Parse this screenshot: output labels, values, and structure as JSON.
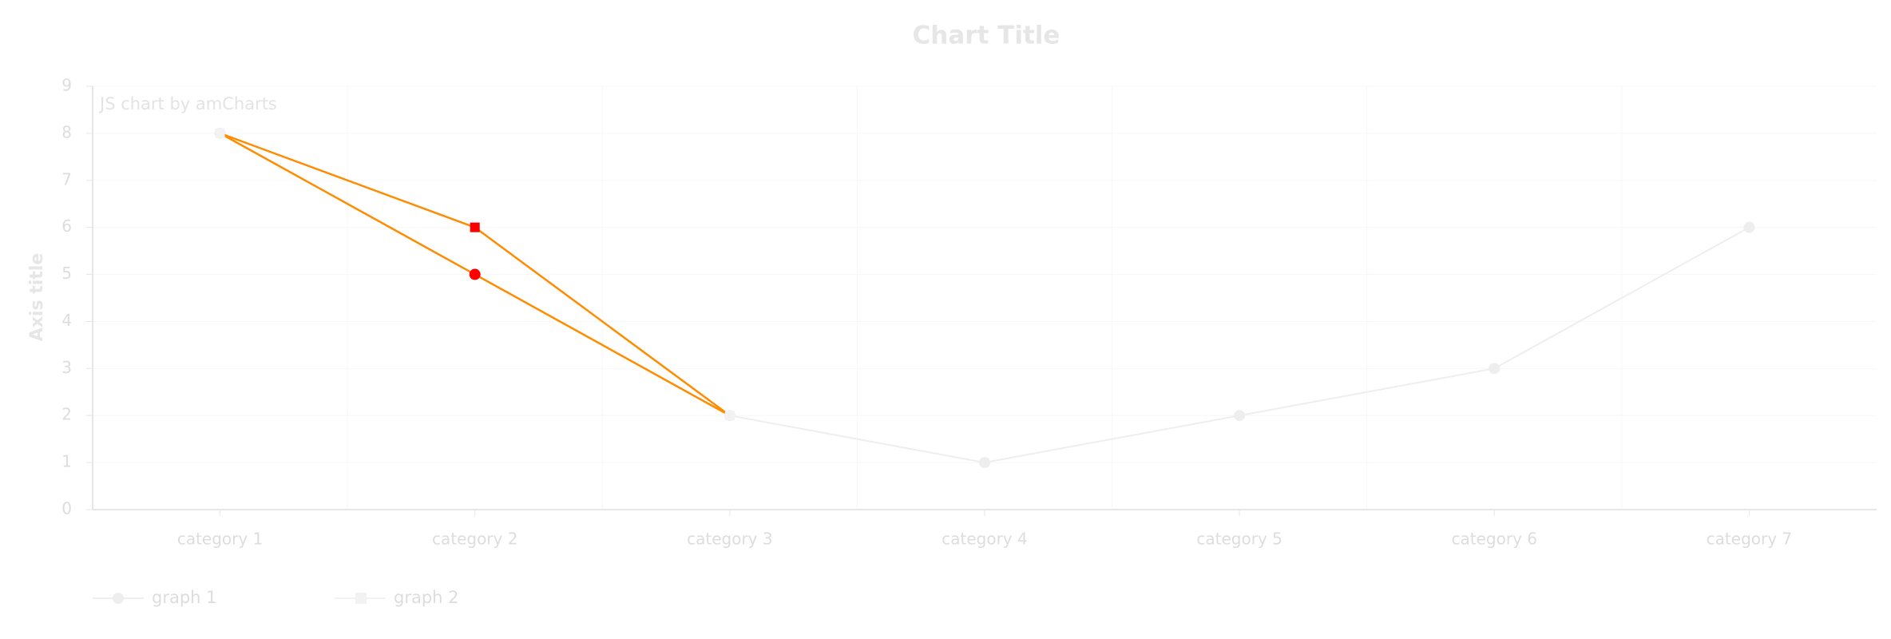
{
  "chart_data": {
    "type": "line",
    "title": "Chart Title",
    "watermark": "JS chart by amCharts",
    "y_axis_title": "Axis title",
    "categories": [
      "category 1",
      "category 2",
      "category 3",
      "category 4",
      "category 5",
      "category 6",
      "category 7"
    ],
    "series": [
      {
        "name": "graph 1",
        "color": "#eeeeee",
        "marker": "circle",
        "values": [
          8,
          5,
          2,
          1,
          2,
          3,
          6
        ]
      },
      {
        "name": "graph 2",
        "color": "#f2f2f2",
        "marker": "square",
        "values": [
          8,
          6,
          2,
          null,
          null,
          null,
          null
        ]
      }
    ],
    "highlight": {
      "color": "#ff8c00",
      "marker_color": "#ff0000",
      "categories": [
        "category 2"
      ]
    },
    "ylim": [
      0,
      9
    ],
    "yticks": [
      0,
      1,
      2,
      3,
      4,
      5,
      6,
      7,
      8,
      9
    ],
    "grid": true,
    "legend": "bottom-left"
  }
}
